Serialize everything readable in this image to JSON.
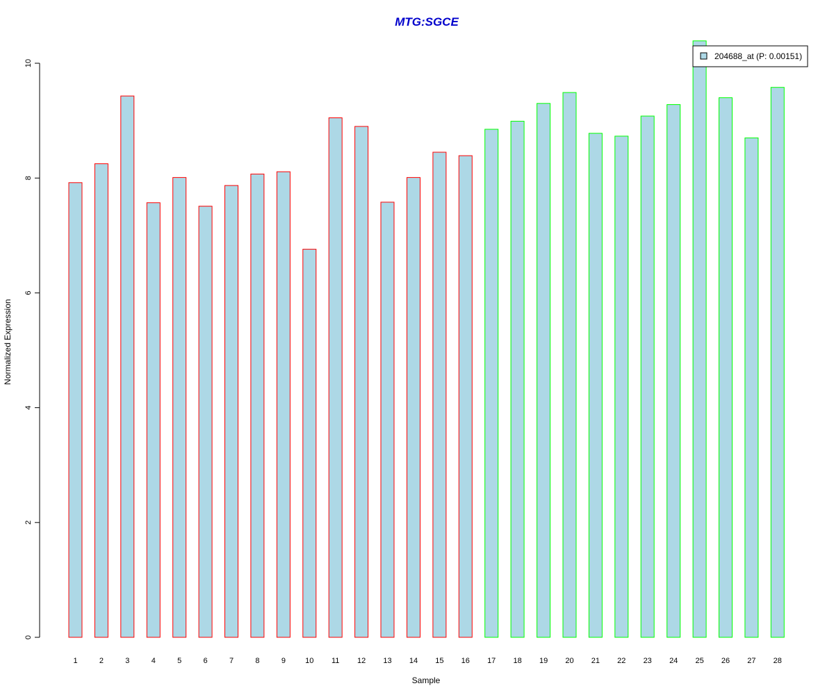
{
  "chart_data": {
    "type": "bar",
    "title": "MTG:SGCE",
    "xlabel": "Sample",
    "ylabel": "Normalized Expression",
    "categories": [
      "1",
      "2",
      "3",
      "4",
      "5",
      "6",
      "7",
      "8",
      "9",
      "10",
      "11",
      "12",
      "13",
      "14",
      "15",
      "16",
      "17",
      "18",
      "19",
      "20",
      "21",
      "22",
      "23",
      "24",
      "25",
      "26",
      "27",
      "28"
    ],
    "series": [
      {
        "name": "204688_at (P: 0.00151)",
        "values": [
          7.92,
          8.25,
          9.43,
          7.57,
          8.01,
          7.51,
          7.87,
          8.07,
          8.11,
          6.76,
          9.05,
          8.9,
          7.58,
          8.01,
          8.45,
          8.39,
          8.85,
          8.99,
          9.3,
          9.49,
          8.78,
          8.73,
          9.08,
          9.28,
          10.39,
          9.4,
          8.7,
          9.58
        ],
        "fill_color": "#ADD8E6"
      }
    ],
    "group_border_colors": [
      "#FF0000",
      "#FF0000",
      "#FF0000",
      "#FF0000",
      "#FF0000",
      "#FF0000",
      "#FF0000",
      "#FF0000",
      "#FF0000",
      "#FF0000",
      "#FF0000",
      "#FF0000",
      "#FF0000",
      "#FF0000",
      "#FF0000",
      "#FF0000",
      "#00FF00",
      "#00FF00",
      "#00FF00",
      "#00FF00",
      "#00FF00",
      "#00FF00",
      "#00FF00",
      "#00FF00",
      "#00FF00",
      "#00FF00",
      "#00FF00",
      "#00FF00"
    ],
    "yticks": [
      "0",
      "2",
      "4",
      "6",
      "8",
      "10"
    ],
    "ylim": [
      0,
      10
    ],
    "grid": false,
    "legend_position": "top-right",
    "title_color": "#0000CC"
  }
}
